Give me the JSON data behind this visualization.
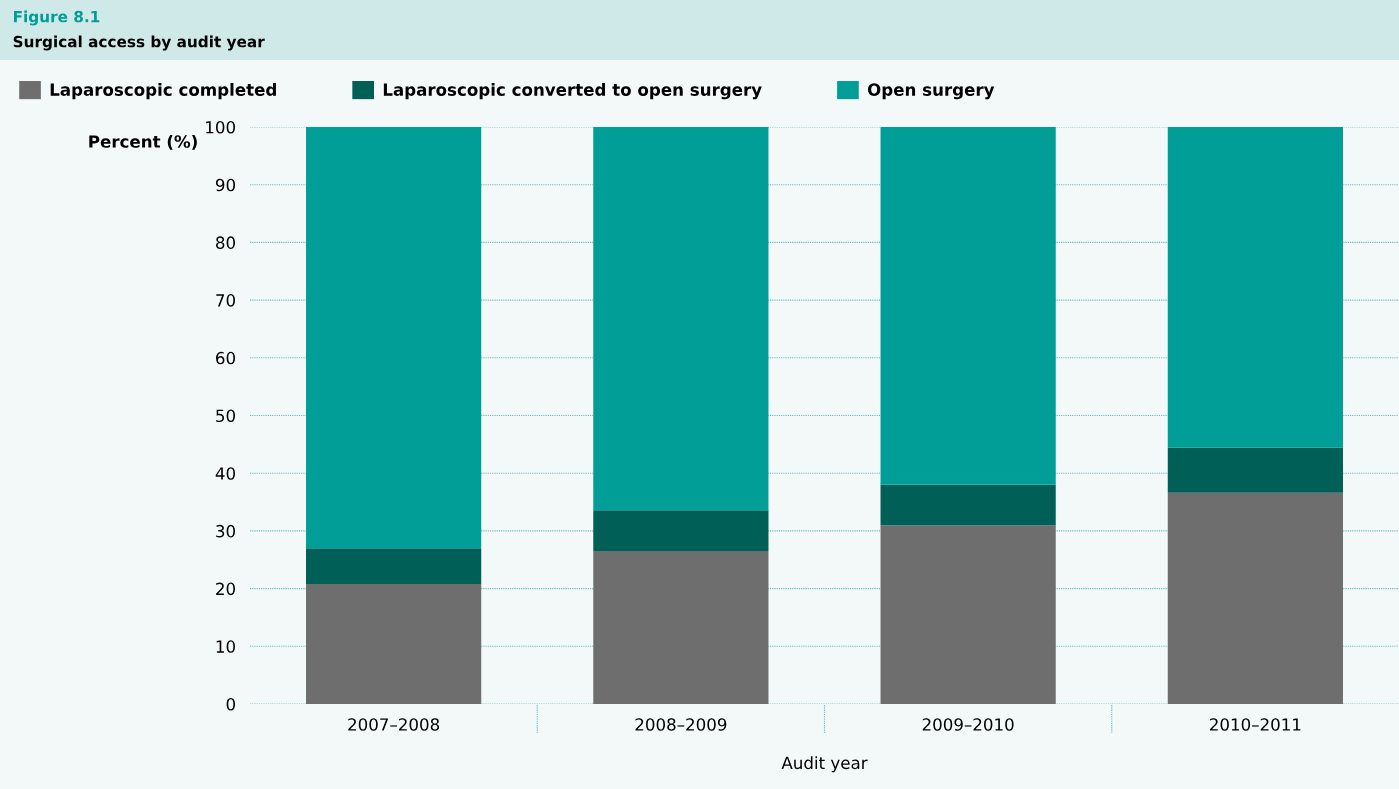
{
  "chart_data": {
    "type": "bar",
    "title": "Figure 8.1",
    "subtitle": "Surgical access by audit year",
    "xlabel": "Audit year",
    "ylabel": "Percent (%)",
    "categories": [
      "2007–2008",
      "2008–2009",
      "2009–2010",
      "2010–2011"
    ],
    "stacked": true,
    "series": [
      {
        "name": "Laparoscopic completed",
        "color": "#6e6e6e",
        "values": [
          20.8,
          26.5,
          31.0,
          36.6
        ]
      },
      {
        "name": "Laparoscopic converted to open surgery",
        "color": "#005f56",
        "values": [
          6.2,
          7.1,
          7.0,
          7.8
        ]
      },
      {
        "name": "Open surgery",
        "color": "#009e96",
        "values": [
          73.0,
          66.4,
          62.0,
          55.6
        ]
      }
    ],
    "ylim": [
      0,
      100
    ],
    "yticks": [
      0,
      10,
      20,
      30,
      40,
      50,
      60,
      70,
      80,
      90,
      100
    ],
    "grid": "y",
    "legend": "top"
  }
}
